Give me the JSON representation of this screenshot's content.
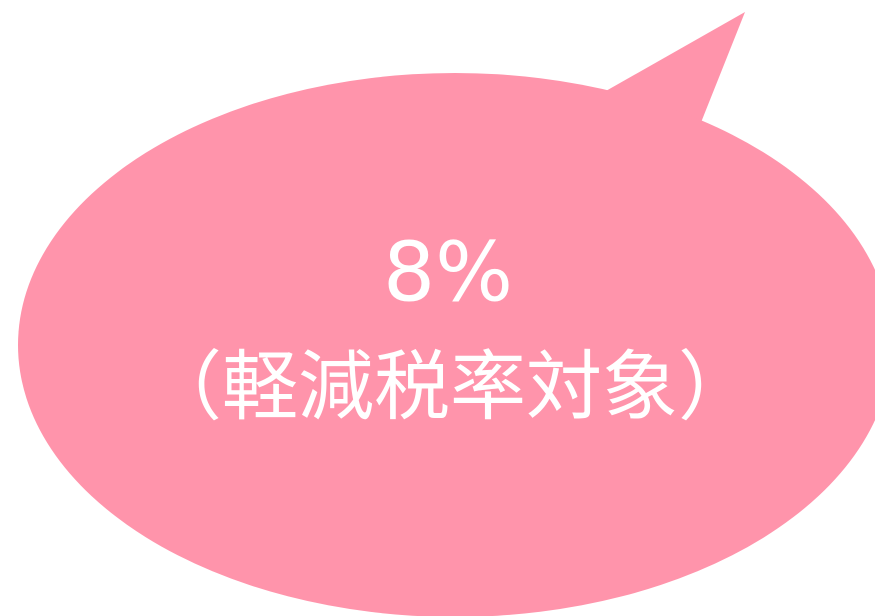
{
  "bubble": {
    "lines": [
      "8%",
      "（軽減税率対象）"
    ]
  }
}
